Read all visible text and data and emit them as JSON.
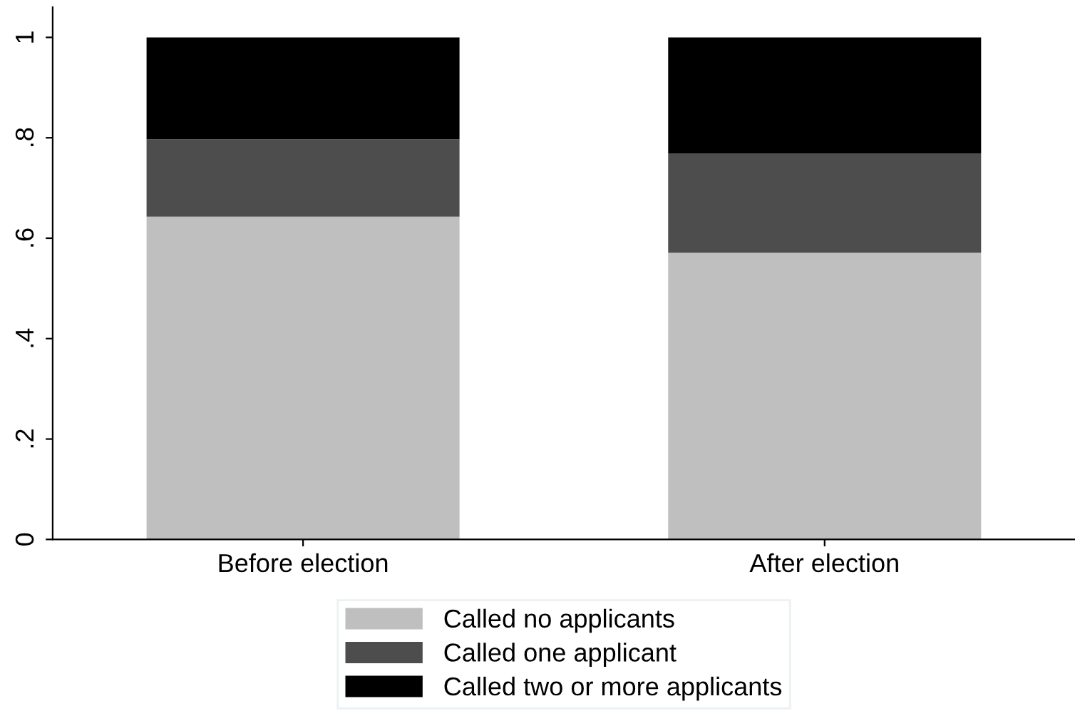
{
  "chart_data": {
    "type": "bar",
    "stacked": true,
    "categories": [
      "Before election",
      "After election"
    ],
    "series": [
      {
        "name": "Called no applicants",
        "color": "#bfbfbf",
        "values": [
          0.643,
          0.571
        ]
      },
      {
        "name": "Called one applicant",
        "color": "#4d4d4d",
        "values": [
          0.154,
          0.198
        ]
      },
      {
        "name": "Called two or more applicants",
        "color": "#000000",
        "values": [
          0.203,
          0.231
        ]
      }
    ],
    "ylim": [
      0,
      1.06
    ],
    "yticks": [
      0,
      {
        "value": 0.2,
        "label": ".2"
      },
      {
        "value": 0.4,
        "label": ".4"
      },
      {
        "value": 0.6,
        "label": ".6"
      },
      {
        "value": 0.8,
        "label": ".8"
      },
      1
    ],
    "grid": false,
    "legend": "bottom"
  }
}
